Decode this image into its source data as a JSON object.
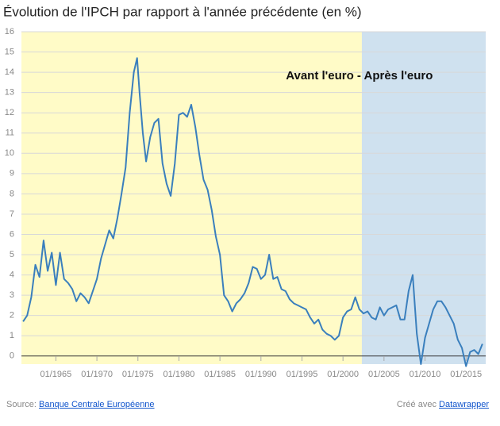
{
  "chart_data": {
    "type": "line",
    "title": "Évolution de l'IPCH par rapport à l'année précédente (en %)",
    "annotation": {
      "text": "Avant l'euro - Après l'euro",
      "x": 2002,
      "y": 13.8
    },
    "regions": [
      {
        "from": 1960.8,
        "to": 2002.3,
        "color": "#fffbc7"
      },
      {
        "from": 2002.3,
        "to": 2017.4,
        "color": "#cfe1ef"
      }
    ],
    "xlim": [
      1960.8,
      2017.4
    ],
    "ylim": [
      -0.4,
      16
    ],
    "xticks": [
      {
        "value": 1965,
        "label": "01/1965"
      },
      {
        "value": 1970,
        "label": "01/1970"
      },
      {
        "value": 1975,
        "label": "01/1975"
      },
      {
        "value": 1980,
        "label": "01/1980"
      },
      {
        "value": 1985,
        "label": "01/1985"
      },
      {
        "value": 1990,
        "label": "01/1990"
      },
      {
        "value": 1995,
        "label": "01/1995"
      },
      {
        "value": 2000,
        "label": "01/2000"
      },
      {
        "value": 2005,
        "label": "01/2005"
      },
      {
        "value": 2010,
        "label": "01/2010"
      },
      {
        "value": 2015,
        "label": "01/2015"
      }
    ],
    "yticks": [
      0,
      1,
      2,
      3,
      4,
      5,
      6,
      7,
      8,
      9,
      10,
      11,
      12,
      13,
      14,
      15,
      16
    ],
    "grid": true,
    "x": [
      1961.0,
      1961.5,
      1962.0,
      1962.5,
      1963.0,
      1963.5,
      1964.0,
      1964.5,
      1965.0,
      1965.5,
      1966.0,
      1966.5,
      1967.0,
      1967.5,
      1968.0,
      1968.5,
      1969.0,
      1969.5,
      1970.0,
      1970.5,
      1971.0,
      1971.5,
      1972.0,
      1972.5,
      1973.0,
      1973.5,
      1974.0,
      1974.5,
      1974.9,
      1975.2,
      1975.6,
      1976.0,
      1976.5,
      1977.0,
      1977.5,
      1978.0,
      1978.5,
      1979.0,
      1979.5,
      1980.0,
      1980.5,
      1981.0,
      1981.5,
      1982.0,
      1982.5,
      1983.0,
      1983.5,
      1984.0,
      1984.5,
      1985.0,
      1985.5,
      1986.0,
      1986.5,
      1987.0,
      1987.5,
      1988.0,
      1988.5,
      1989.0,
      1989.5,
      1990.0,
      1990.5,
      1991.0,
      1991.5,
      1992.0,
      1992.5,
      1993.0,
      1993.5,
      1994.0,
      1994.5,
      1995.0,
      1995.5,
      1996.0,
      1996.5,
      1997.0,
      1997.5,
      1998.0,
      1998.5,
      1999.0,
      1999.5,
      2000.0,
      2000.5,
      2001.0,
      2001.5,
      2002.0,
      2002.5,
      2003.0,
      2003.5,
      2004.0,
      2004.5,
      2005.0,
      2005.5,
      2006.0,
      2006.5,
      2007.0,
      2007.5,
      2008.0,
      2008.5,
      2009.0,
      2009.5,
      2010.0,
      2010.5,
      2011.0,
      2011.5,
      2012.0,
      2012.5,
      2013.0,
      2013.5,
      2014.0,
      2014.5,
      2015.0,
      2015.5,
      2016.0,
      2016.5,
      2017.0
    ],
    "series": [
      {
        "name": "IPCH",
        "color": "#3a7fbd",
        "values": [
          1.7,
          2.0,
          2.9,
          4.5,
          3.9,
          5.7,
          4.2,
          5.1,
          3.5,
          5.1,
          3.8,
          3.6,
          3.3,
          2.7,
          3.1,
          2.9,
          2.6,
          3.2,
          3.8,
          4.8,
          5.5,
          6.2,
          5.8,
          6.8,
          8.0,
          9.3,
          12.0,
          14.0,
          14.7,
          13.0,
          11.0,
          9.6,
          10.8,
          11.5,
          11.7,
          9.5,
          8.5,
          7.9,
          9.5,
          11.9,
          12.0,
          11.8,
          12.4,
          11.3,
          9.9,
          8.7,
          8.2,
          7.2,
          5.9,
          5.0,
          3.0,
          2.7,
          2.2,
          2.6,
          2.8,
          3.1,
          3.6,
          4.4,
          4.3,
          3.8,
          4.0,
          5.0,
          3.8,
          3.9,
          3.3,
          3.2,
          2.8,
          2.6,
          2.5,
          2.4,
          2.3,
          1.9,
          1.6,
          1.8,
          1.3,
          1.1,
          1.0,
          0.8,
          1.0,
          1.9,
          2.2,
          2.3,
          2.9,
          2.3,
          2.1,
          2.2,
          1.9,
          1.8,
          2.4,
          2.0,
          2.3,
          2.4,
          2.5,
          1.8,
          1.8,
          3.2,
          4.0,
          1.1,
          -0.4,
          0.9,
          1.6,
          2.3,
          2.7,
          2.7,
          2.4,
          2.0,
          1.6,
          0.8,
          0.4,
          -0.5,
          0.2,
          0.3,
          0.1,
          0.6
        ]
      }
    ]
  },
  "footer": {
    "source_label": "Source:",
    "source_link": "Banque Centrale Européenne",
    "credit_label": "Créé avec",
    "credit_link": "Datawrapper"
  }
}
